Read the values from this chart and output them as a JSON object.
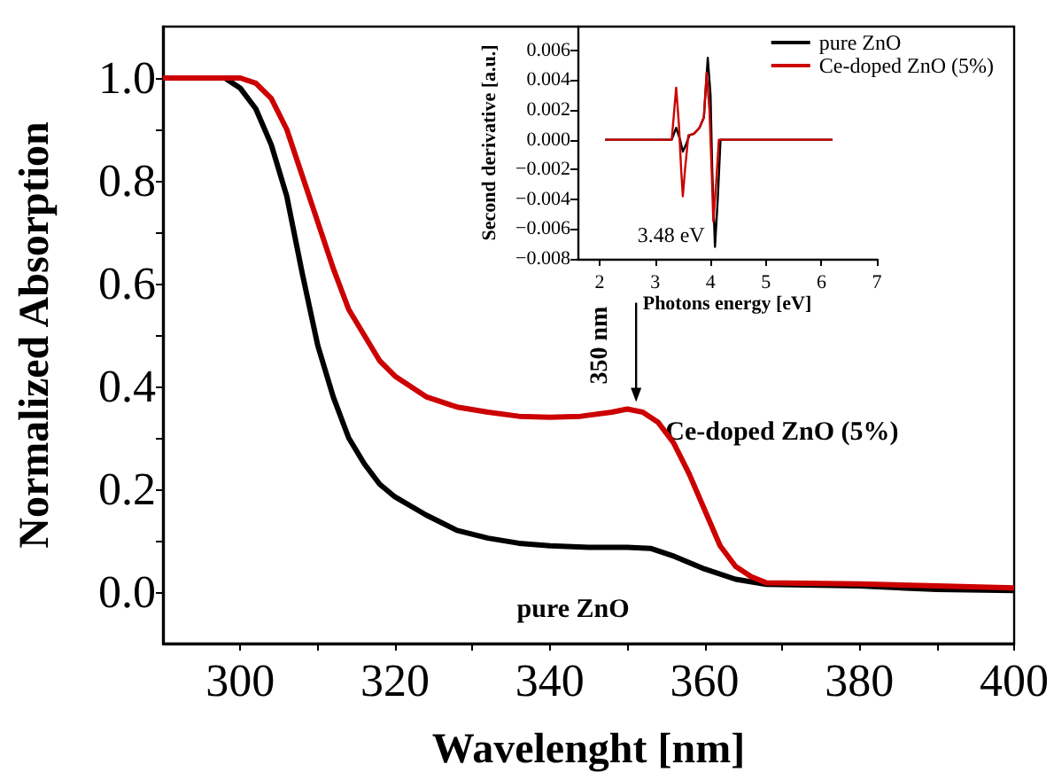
{
  "chart_data": [
    {
      "type": "line",
      "xlabel": "Wavelenght [nm]",
      "ylabel": "Normalized Absorption",
      "xlim": [
        290,
        400
      ],
      "ylim": [
        -0.1,
        1.1
      ],
      "xticks": [
        300,
        {
          "value": 310,
          "label": null
        },
        320,
        {
          "value": 330,
          "label": null
        },
        340,
        {
          "value": 350,
          "label": null
        },
        360,
        {
          "value": 370,
          "label": null
        },
        380,
        {
          "value": 390,
          "label": null
        },
        400
      ],
      "yticks": [
        {
          "value": 0,
          "label": "0.0"
        },
        {
          "value": 0.1,
          "label": null
        },
        {
          "value": 0.2,
          "label": "0.2"
        },
        {
          "value": 0.3,
          "label": null
        },
        {
          "value": 0.4,
          "label": "0.4"
        },
        {
          "value": 0.5,
          "label": null
        },
        {
          "value": 0.6,
          "label": "0.6"
        },
        {
          "value": 0.7,
          "label": null
        },
        {
          "value": 0.8,
          "label": "0.8"
        },
        {
          "value": 0.9,
          "label": null
        },
        {
          "value": 1.0,
          "label": "1.0"
        }
      ],
      "legend": false,
      "annotations": [
        {
          "text": "350 nm",
          "x": 350,
          "y": 0.356
        }
      ],
      "series": [
        {
          "name": "pure ZnO",
          "color": "#000000",
          "x": [
            290,
            298,
            300,
            302,
            304,
            306,
            308,
            310,
            312,
            314,
            316,
            318,
            320,
            324,
            328,
            332,
            336,
            340,
            345,
            350,
            353,
            356,
            360,
            364,
            368,
            380,
            390,
            400
          ],
          "values": [
            1.0,
            1.0,
            0.98,
            0.94,
            0.87,
            0.77,
            0.62,
            0.48,
            0.38,
            0.3,
            0.25,
            0.21,
            0.185,
            0.15,
            0.12,
            0.105,
            0.095,
            0.09,
            0.087,
            0.087,
            0.085,
            0.07,
            0.045,
            0.025,
            0.015,
            0.012,
            0.005,
            0.003
          ]
        },
        {
          "name": "Ce-doped ZnO (5%)",
          "color": "#cc0000",
          "x": [
            290,
            300,
            302,
            304,
            306,
            308,
            310,
            312,
            314,
            316,
            318,
            320,
            324,
            328,
            332,
            336,
            340,
            344,
            348,
            350,
            352,
            354,
            356,
            358,
            360,
            362,
            364,
            366,
            368,
            380,
            390,
            400
          ],
          "values": [
            1.0,
            1.0,
            0.99,
            0.96,
            0.9,
            0.81,
            0.72,
            0.63,
            0.55,
            0.5,
            0.45,
            0.42,
            0.38,
            0.36,
            0.35,
            0.342,
            0.34,
            0.342,
            0.35,
            0.356,
            0.35,
            0.33,
            0.29,
            0.23,
            0.16,
            0.09,
            0.05,
            0.03,
            0.018,
            0.016,
            0.012,
            0.008
          ]
        }
      ]
    },
    {
      "type": "line",
      "xlabel": "Photons energy [eV]",
      "ylabel": "Second derivative [a.u.]",
      "xlim": [
        1.6,
        7
      ],
      "ylim": [
        -0.008,
        0.0076
      ],
      "xticks": [
        2,
        3,
        4,
        5,
        6,
        7
      ],
      "yticks": [
        {
          "value": -0.008,
          "label": "−0.008"
        },
        {
          "value": -0.006,
          "label": "−0.006"
        },
        {
          "value": -0.004,
          "label": "−0.004"
        },
        {
          "value": -0.002,
          "label": "−0.002"
        },
        {
          "value": 0,
          "label": "0.000"
        },
        {
          "value": 0.002,
          "label": "0.002"
        },
        {
          "value": 0.004,
          "label": "0.004"
        },
        {
          "value": 0.006,
          "label": "0.006"
        }
      ],
      "legend": "top right",
      "annotations": [
        {
          "text": "3.48 eV",
          "x": 3.48,
          "y": -0.0038
        }
      ],
      "series": [
        {
          "name": "pure ZnO",
          "color": "#000000",
          "x": [
            2.1,
            3.3,
            3.38,
            3.45,
            3.5,
            3.56,
            3.62,
            3.7,
            3.8,
            3.88,
            3.95,
            4.0,
            4.03,
            4.08,
            4.13,
            4.18,
            6.2
          ],
          "values": [
            0,
            0,
            0.0008,
            0,
            -0.0008,
            -0.0003,
            0.0003,
            0.0004,
            0.0008,
            0.0015,
            0.0055,
            0.003,
            -0.002,
            -0.0072,
            -0.004,
            0,
            0
          ]
        },
        {
          "name": "Ce-doped ZnO (5%)",
          "color": "#cc0000",
          "x": [
            2.1,
            3.3,
            3.38,
            3.43,
            3.47,
            3.5,
            3.54,
            3.6,
            3.7,
            3.8,
            3.88,
            3.93,
            3.98,
            4.02,
            4.05,
            4.1,
            4.15,
            6.2
          ],
          "values": [
            0,
            0,
            0.0035,
            0.001,
            -0.002,
            -0.0038,
            -0.002,
            0.0003,
            0.0004,
            0.0008,
            0.0015,
            0.0045,
            0.002,
            -0.002,
            -0.0055,
            -0.003,
            0,
            0
          ]
        }
      ]
    }
  ]
}
